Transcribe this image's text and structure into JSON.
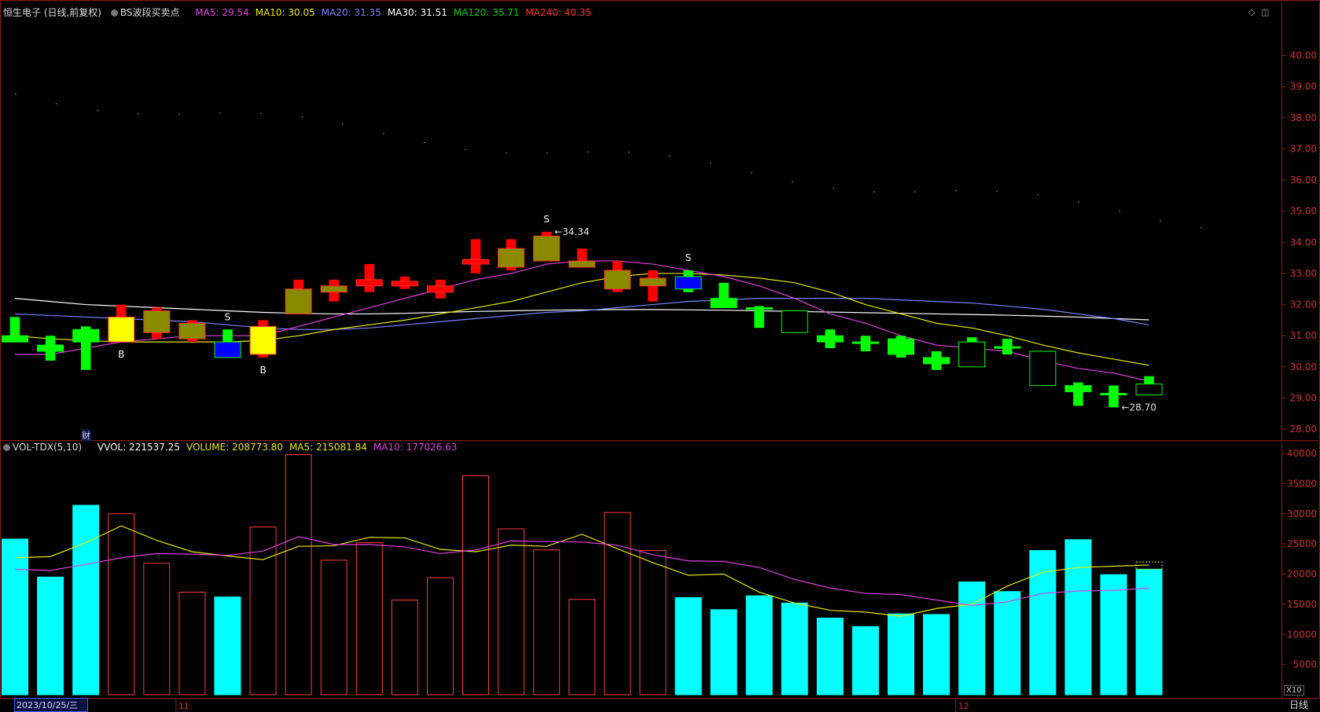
{
  "header": {
    "stock": "恒生电子 (日线,前复权)",
    "indicator": "BS波段买卖点",
    "ma": [
      {
        "label": "MA5: 29.54",
        "color": "#e040e0"
      },
      {
        "label": "MA10: 30.05",
        "color": "#e8e800"
      },
      {
        "label": "MA20: 31.35",
        "color": "#8080ff"
      },
      {
        "label": "MA30: 31.51",
        "color": "#ffffff"
      },
      {
        "label": "MA120: 35.71",
        "color": "#00d000"
      },
      {
        "label": "MA240: 40.35",
        "color": "#ff3030"
      }
    ]
  },
  "vol_header": {
    "name": "VOL-TDX(5,10)",
    "items": [
      {
        "label": "VVOL: 221537.25",
        "color": "#ffffff"
      },
      {
        "label": "VOLUME: 208773.80",
        "color": "#e8e800"
      },
      {
        "label": "MA5: 215081.84",
        "color": "#e8e800"
      },
      {
        "label": "MA10: 177026.63",
        "color": "#e040e0"
      }
    ]
  },
  "axis": {
    "price_ticks": [
      "40.00",
      "39.00",
      "38.00",
      "37.00",
      "36.00",
      "35.00",
      "34.00",
      "33.00",
      "32.00",
      "31.00",
      "30.00",
      "29.00",
      "28.00"
    ],
    "vol_ticks": [
      "40000",
      "35000",
      "30000",
      "25000",
      "20000",
      "15000",
      "10000",
      "5000"
    ],
    "vol_unit": "X10",
    "date_label": "2023/10/25/三",
    "month_labels": [
      {
        "label": "11",
        "index": 5
      },
      {
        "label": "12",
        "index": 27
      }
    ],
    "period": "日线",
    "fin_marker": "财"
  },
  "chart_data": {
    "type": "candlestick",
    "ylim": [
      27.7,
      41.4
    ],
    "vol_ylim": [
      0,
      40000
    ],
    "candles": [
      {
        "o": 30.8,
        "c": 31.0,
        "h": 31.6,
        "l": 30.8,
        "vol": 25800,
        "col": "green"
      },
      {
        "o": 30.5,
        "c": 30.7,
        "h": 31.0,
        "l": 30.2,
        "vol": 19500,
        "col": "green"
      },
      {
        "o": 31.2,
        "c": 30.8,
        "h": 31.3,
        "l": 29.9,
        "vol": 31400,
        "col": "green"
      },
      {
        "o": 30.8,
        "c": 31.6,
        "h": 32.0,
        "l": 30.8,
        "vol": 30000,
        "col": "yellow"
      },
      {
        "o": 31.1,
        "c": 31.8,
        "h": 31.9,
        "l": 30.9,
        "vol": 21800,
        "col": "olive"
      },
      {
        "o": 30.9,
        "c": 31.4,
        "h": 31.5,
        "l": 30.8,
        "vol": 17000,
        "col": "olive"
      },
      {
        "o": 30.8,
        "c": 30.3,
        "h": 31.2,
        "l": 30.3,
        "vol": 16200,
        "col": "blue"
      },
      {
        "o": 30.4,
        "c": 31.3,
        "h": 31.5,
        "l": 30.3,
        "vol": 27800,
        "col": "yellow"
      },
      {
        "o": 31.7,
        "c": 32.5,
        "h": 32.8,
        "l": 31.7,
        "vol": 39800,
        "col": "olive"
      },
      {
        "o": 32.4,
        "c": 32.6,
        "h": 32.8,
        "l": 32.1,
        "vol": 22300,
        "col": "olive"
      },
      {
        "o": 32.6,
        "c": 32.8,
        "h": 33.3,
        "l": 32.4,
        "vol": 25200,
        "col": "red"
      },
      {
        "o": 32.6,
        "c": 32.75,
        "h": 32.9,
        "l": 32.5,
        "vol": 15700,
        "col": "red"
      },
      {
        "o": 32.4,
        "c": 32.6,
        "h": 32.8,
        "l": 32.2,
        "vol": 19400,
        "col": "red"
      },
      {
        "o": 33.3,
        "c": 33.45,
        "h": 34.1,
        "l": 33.0,
        "vol": 36300,
        "col": "red"
      },
      {
        "o": 33.2,
        "c": 33.8,
        "h": 34.1,
        "l": 33.1,
        "vol": 27500,
        "col": "olive"
      },
      {
        "o": 33.4,
        "c": 34.2,
        "h": 34.34,
        "l": 33.4,
        "vol": 24000,
        "col": "olive"
      },
      {
        "o": 33.2,
        "c": 33.4,
        "h": 33.8,
        "l": 33.2,
        "vol": 15800,
        "col": "olive"
      },
      {
        "o": 32.5,
        "c": 33.1,
        "h": 33.4,
        "l": 32.4,
        "vol": 30200,
        "col": "olive"
      },
      {
        "o": 32.6,
        "c": 32.85,
        "h": 33.1,
        "l": 32.1,
        "vol": 23900,
        "col": "olive"
      },
      {
        "o": 32.5,
        "c": 32.9,
        "h": 33.1,
        "l": 32.4,
        "vol": 16100,
        "col": "blue"
      },
      {
        "o": 32.2,
        "c": 31.9,
        "h": 32.7,
        "l": 31.9,
        "vol": 14100,
        "col": "green"
      },
      {
        "o": 31.9,
        "c": 31.85,
        "h": 31.95,
        "l": 31.25,
        "vol": 16400,
        "col": "green"
      },
      {
        "o": 31.8,
        "c": 31.1,
        "h": 31.8,
        "l": 31.1,
        "vol": 15200,
        "col": "green"
      },
      {
        "o": 31.0,
        "c": 30.8,
        "h": 31.2,
        "l": 30.6,
        "vol": 12700,
        "col": "green"
      },
      {
        "o": 30.8,
        "c": 30.75,
        "h": 31.0,
        "l": 30.5,
        "vol": 11300,
        "col": "green"
      },
      {
        "o": 30.9,
        "c": 30.4,
        "h": 31.0,
        "l": 30.3,
        "vol": 13400,
        "col": "green"
      },
      {
        "o": 30.3,
        "c": 30.1,
        "h": 30.5,
        "l": 29.9,
        "vol": 13300,
        "col": "green"
      },
      {
        "o": 30.8,
        "c": 30.0,
        "h": 30.95,
        "l": 30.0,
        "vol": 18700,
        "col": "green"
      },
      {
        "o": 30.65,
        "c": 30.6,
        "h": 30.9,
        "l": 30.4,
        "vol": 17100,
        "col": "green"
      },
      {
        "o": 30.5,
        "c": 29.4,
        "h": 30.5,
        "l": 29.4,
        "vol": 23900,
        "col": "green"
      },
      {
        "o": 29.4,
        "c": 29.2,
        "h": 29.5,
        "l": 28.75,
        "vol": 25700,
        "col": "green"
      },
      {
        "o": 29.1,
        "c": 29.15,
        "h": 29.4,
        "l": 28.7,
        "vol": 19900,
        "col": "green"
      },
      {
        "o": 29.1,
        "c": 29.45,
        "h": 29.7,
        "l": 29.1,
        "vol": 20800,
        "col": "green"
      }
    ],
    "ma5": [
      30.4,
      30.4,
      30.6,
      30.8,
      30.9,
      31.0,
      31.0,
      31.0,
      31.3,
      31.6,
      31.9,
      32.2,
      32.5,
      32.8,
      33.0,
      33.3,
      33.4,
      33.4,
      33.3,
      33.1,
      32.9,
      32.6,
      32.2,
      31.7,
      31.4,
      31.0,
      30.7,
      30.6,
      30.5,
      30.2,
      29.95,
      29.8,
      29.54
    ],
    "ma10": [
      31.0,
      30.9,
      30.85,
      30.8,
      30.8,
      30.8,
      30.8,
      30.85,
      31.0,
      31.2,
      31.35,
      31.5,
      31.7,
      31.9,
      32.1,
      32.4,
      32.7,
      32.9,
      33.0,
      33.0,
      32.95,
      32.85,
      32.7,
      32.4,
      32.0,
      31.7,
      31.4,
      31.25,
      31.0,
      30.7,
      30.45,
      30.25,
      30.05
    ],
    "ma20": [
      31.7,
      31.65,
      31.6,
      31.55,
      31.5,
      31.45,
      31.35,
      31.25,
      31.2,
      31.2,
      31.25,
      31.35,
      31.45,
      31.55,
      31.65,
      31.75,
      31.8,
      31.9,
      32.0,
      32.1,
      32.15,
      32.2,
      32.2,
      32.2,
      32.2,
      32.15,
      32.1,
      32.05,
      31.95,
      31.85,
      31.7,
      31.55,
      31.35
    ],
    "ma30": [
      32.2,
      32.1,
      32.0,
      31.95,
      31.9,
      31.85,
      31.8,
      31.75,
      31.72,
      31.7,
      31.7,
      31.72,
      31.75,
      31.78,
      31.8,
      31.82,
      31.83,
      31.84,
      31.84,
      31.83,
      31.82,
      31.8,
      31.78,
      31.76,
      31.74,
      31.72,
      31.7,
      31.68,
      31.66,
      31.63,
      31.6,
      31.55,
      31.51
    ],
    "vol_ma5": [
      22700,
      22900,
      25200,
      28000,
      25600,
      23700,
      23000,
      22400,
      24600,
      24700,
      26100,
      26000,
      24100,
      23700,
      24800,
      24600,
      26600,
      24200,
      21900,
      19800,
      20000,
      17000,
      15200,
      14000,
      13700,
      13000,
      14300,
      15000,
      18000,
      20300,
      21100,
      21300,
      21508
    ],
    "vol_ma10": [
      20800,
      20600,
      21600,
      22700,
      23400,
      23300,
      23100,
      23800,
      26200,
      24900,
      24900,
      24500,
      23400,
      24000,
      25500,
      25400,
      25300,
      24800,
      23200,
      22200,
      22100,
      21100,
      19100,
      17700,
      16800,
      16600,
      15700,
      14800,
      15400,
      16800,
      17200,
      17300,
      17703
    ],
    "markers": [
      {
        "index": 3,
        "text": "B",
        "pos": "below"
      },
      {
        "index": 6,
        "text": "S",
        "pos": "above"
      },
      {
        "index": 7,
        "text": "B",
        "pos": "below"
      },
      {
        "index": 15,
        "text": "S",
        "pos": "above"
      },
      {
        "index": 19,
        "text": "S",
        "pos": "above"
      }
    ],
    "price_labels": [
      {
        "index": 15,
        "text": "34.34",
        "value": 34.34
      },
      {
        "index": 31,
        "text": "28.70",
        "value": 28.7
      }
    ]
  }
}
